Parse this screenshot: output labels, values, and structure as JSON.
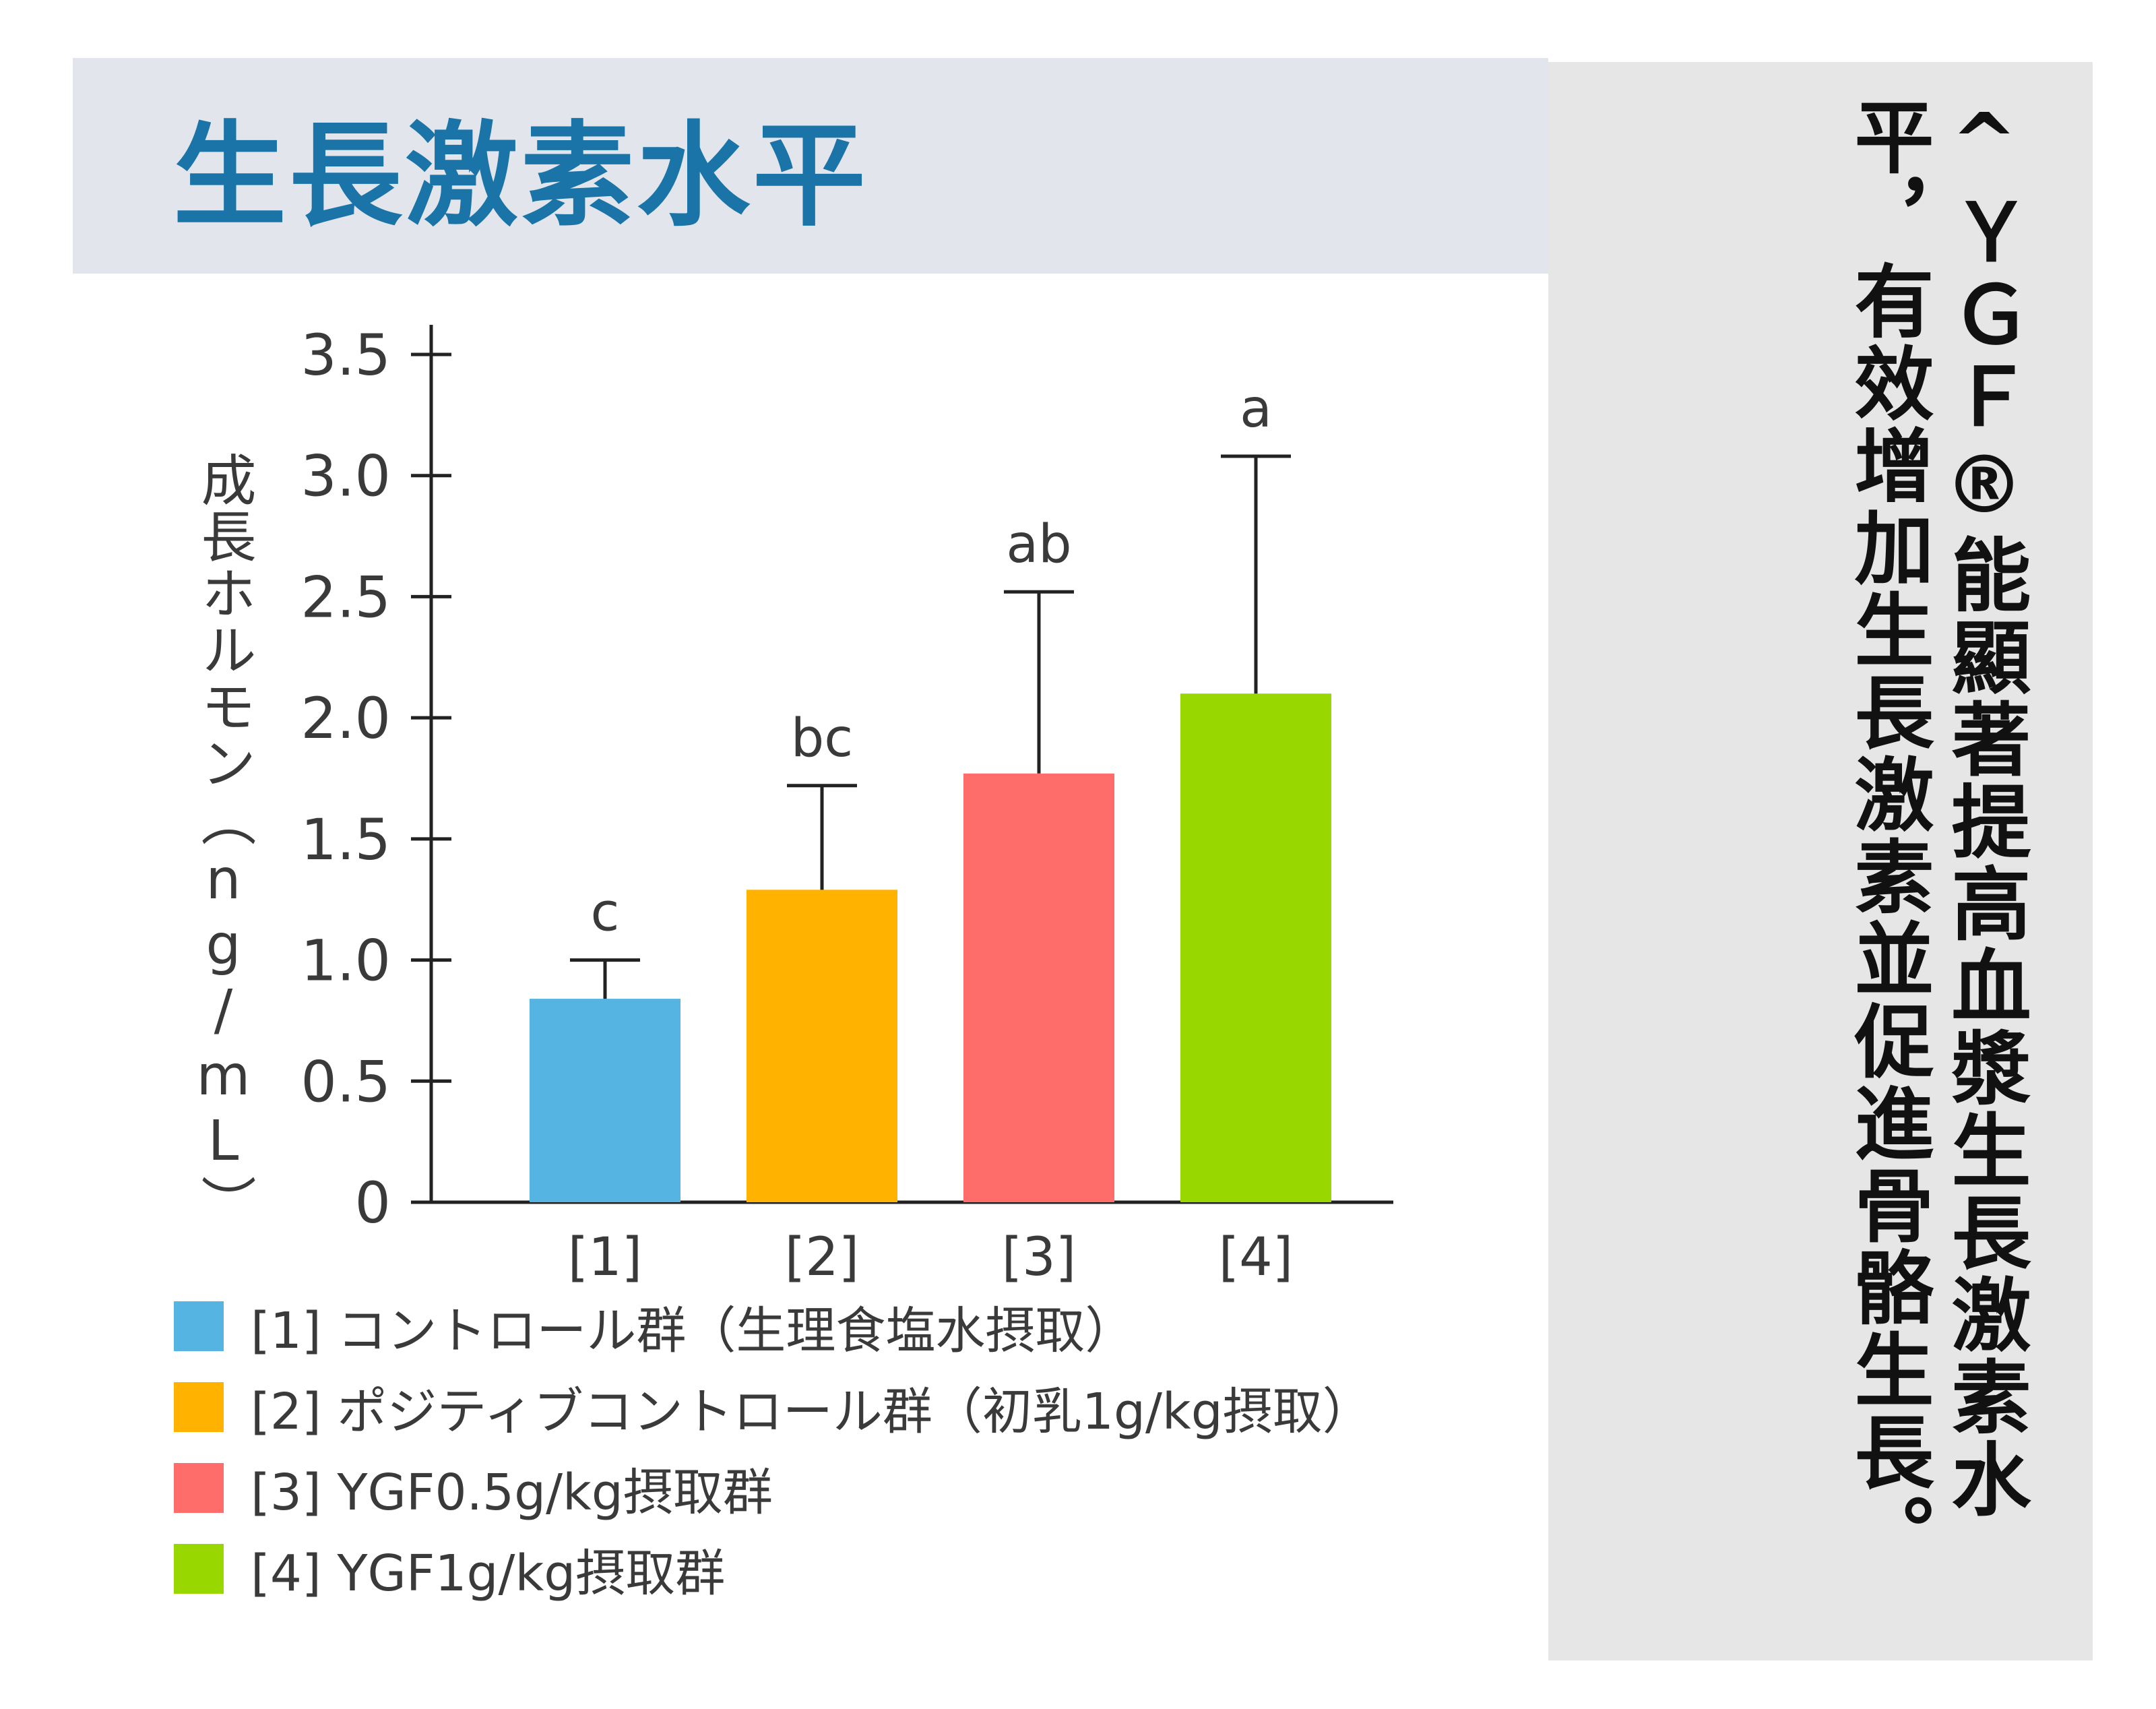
{
  "title": "生長激素水平",
  "side_text": "^ＹＧＦ®能顯著提高血漿生長激素水平，有效增加生長激素並促進骨骼生長。",
  "chart_data": {
    "type": "bar",
    "title": "",
    "ylabel": "成長ホルモン（ng/mL）",
    "xlabel": "",
    "categories": [
      "[1]",
      "[2]",
      "[3]",
      "[4]"
    ],
    "values": [
      0.84,
      1.29,
      1.77,
      2.1
    ],
    "errors": [
      0.16,
      0.43,
      0.75,
      0.98
    ],
    "significance": [
      "c",
      "bc",
      "ab",
      "a"
    ],
    "colors": [
      "#56b4e2",
      "#ffb200",
      "#ff6d6b",
      "#99d700"
    ],
    "ylim": [
      0,
      3.5
    ],
    "yticks": [
      0,
      0.5,
      1.0,
      1.5,
      2.0,
      2.5,
      3.0,
      3.5
    ],
    "ytick_labels": [
      "0",
      "0.5",
      "1.0",
      "1.5",
      "2.0",
      "2.5",
      "3.0",
      "3.5"
    ],
    "grid": false,
    "legend": [
      {
        "label": "[1] コントロール群（生理食塩水摂取）",
        "color": "#56b4e2"
      },
      {
        "label": "[2] ポジティブコントロール群（初乳1g/kg摂取）",
        "color": "#ffb200"
      },
      {
        "label": "[3] YGF0.5g/kg摂取群",
        "color": "#ff6d6b"
      },
      {
        "label": "[4] YGF1g/kg摂取群",
        "color": "#99d700"
      }
    ]
  }
}
